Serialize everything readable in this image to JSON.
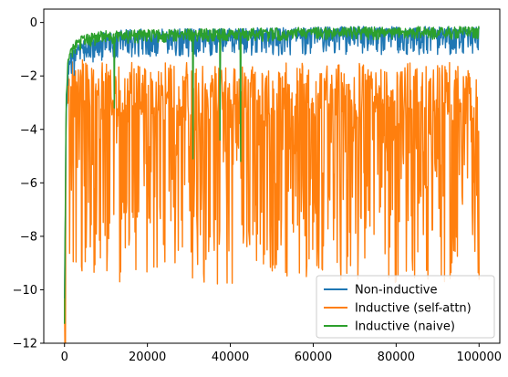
{
  "chart_data": {
    "type": "line",
    "title": "",
    "xlabel": "",
    "ylabel": "",
    "xlim": [
      -5000,
      105000
    ],
    "ylim": [
      -12,
      0.5
    ],
    "x_ticks": [
      0,
      20000,
      40000,
      60000,
      80000,
      100000
    ],
    "y_ticks": [
      0,
      -2,
      -4,
      -6,
      -8,
      -10,
      -12
    ],
    "grid": false,
    "legend_position": "lower-right",
    "series": [
      {
        "name": "Non-inductive",
        "color": "#1f77b4",
        "x": [
          0,
          400,
          800,
          1500,
          2500,
          4000,
          6000,
          8000,
          10000,
          13000,
          16000,
          20000,
          25000,
          30000,
          35000,
          40000,
          45000,
          50000,
          55000,
          60000,
          65000,
          70000,
          75000,
          80000,
          85000,
          90000,
          95000,
          100000
        ],
        "y": [
          -10.4,
          -3.5,
          -1.8,
          -1.4,
          -1.2,
          -1.0,
          -0.8,
          -0.7,
          -0.6,
          -0.55,
          -0.5,
          -0.5,
          -0.5,
          -0.48,
          -0.47,
          -0.46,
          -0.45,
          -0.44,
          -0.43,
          -0.42,
          -0.41,
          -0.4,
          -0.4,
          -0.4,
          -0.4,
          -0.4,
          -0.4,
          -0.4
        ],
        "spread_low": 0.8,
        "spread_high": 0.25
      },
      {
        "name": "Inductive (self-attn)",
        "color": "#ff7f0e",
        "x": [
          0,
          500,
          1000,
          2000,
          3000,
          5000,
          8000,
          10000,
          15000,
          20000,
          25000,
          30000,
          40000,
          50000,
          60000,
          70000,
          80000,
          90000,
          100000
        ],
        "y": [
          -11.0,
          -4.0,
          -3.0,
          -3.0,
          -3.0,
          -3.2,
          -3.3,
          -3.3,
          -3.3,
          -3.3,
          -3.3,
          -3.3,
          -3.3,
          -3.3,
          -3.3,
          -3.3,
          -3.3,
          -3.3,
          -3.3
        ],
        "spread_low": 6.5,
        "spread_high": 1.8
      },
      {
        "name": "Inductive (naive)",
        "color": "#2ca02c",
        "x": [
          0,
          400,
          800,
          1500,
          2500,
          4000,
          6000,
          8000,
          10000,
          15000,
          20000,
          30000,
          40000,
          50000,
          60000,
          70000,
          80000,
          90000,
          100000
        ],
        "y": [
          -11.4,
          -3.0,
          -1.6,
          -1.2,
          -0.9,
          -0.7,
          -0.6,
          -0.55,
          -0.5,
          -0.48,
          -0.46,
          -0.44,
          -0.42,
          -0.4,
          -0.38,
          -0.36,
          -0.35,
          -0.34,
          -0.33
        ],
        "spread_low": 0.3,
        "spread_high": 0.2,
        "dips": [
          {
            "x": 31000,
            "y": -5.1
          },
          {
            "x": 37500,
            "y": -4.4
          },
          {
            "x": 42500,
            "y": -5.2
          },
          {
            "x": 12000,
            "y": -3.2
          }
        ]
      }
    ]
  }
}
